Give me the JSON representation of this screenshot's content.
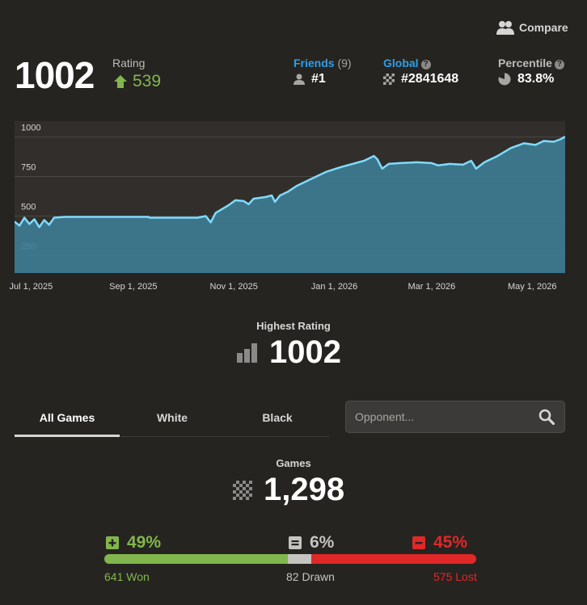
{
  "header": {
    "compare_label": "Compare",
    "rating_value": "1002",
    "rating_label": "Rating",
    "rating_change": "539",
    "friends": {
      "label": "Friends",
      "count": "(9)",
      "value": "#1"
    },
    "global": {
      "label": "Global",
      "value": "#2841648"
    },
    "percentile": {
      "label": "Percentile",
      "value": "83.8%"
    }
  },
  "chart_data": {
    "type": "area",
    "x_tick_labels": [
      "Jul 1, 2025",
      "Sep 1, 2025",
      "Nov 1, 2025",
      "Jan 1, 2026",
      "Mar 1, 2026",
      "May 1, 2026"
    ],
    "y_tick_labels": [
      "1000",
      "750",
      "500",
      "250"
    ],
    "y_ticks": [
      1000,
      750,
      500,
      250
    ],
    "ylim": [
      140,
      1100
    ],
    "x_range": [
      "2025-06-21",
      "2026-05-21"
    ],
    "grid": true,
    "series": [
      {
        "color": "#7fdbff",
        "points": [
          [
            "2025-06-21",
            465
          ],
          [
            "2025-06-24",
            440
          ],
          [
            "2025-06-27",
            490
          ],
          [
            "2025-06-30",
            450
          ],
          [
            "2025-07-03",
            480
          ],
          [
            "2025-07-06",
            430
          ],
          [
            "2025-07-09",
            475
          ],
          [
            "2025-07-12",
            445
          ],
          [
            "2025-07-15",
            490
          ],
          [
            "2025-07-22",
            495
          ],
          [
            "2025-08-15",
            495
          ],
          [
            "2025-09-10",
            495
          ],
          [
            "2025-09-11",
            490
          ],
          [
            "2025-10-10",
            490
          ],
          [
            "2025-10-15",
            500
          ],
          [
            "2025-10-18",
            460
          ],
          [
            "2025-10-21",
            520
          ],
          [
            "2025-10-25",
            545
          ],
          [
            "2025-10-29",
            570
          ],
          [
            "2025-11-02",
            600
          ],
          [
            "2025-11-07",
            595
          ],
          [
            "2025-11-10",
            575
          ],
          [
            "2025-11-13",
            610
          ],
          [
            "2025-11-20",
            620
          ],
          [
            "2025-11-24",
            630
          ],
          [
            "2025-11-26",
            590
          ],
          [
            "2025-11-29",
            630
          ],
          [
            "2025-12-04",
            655
          ],
          [
            "2025-12-09",
            690
          ],
          [
            "2025-12-14",
            715
          ],
          [
            "2025-12-20",
            745
          ],
          [
            "2025-12-27",
            780
          ],
          [
            "2026-01-05",
            810
          ],
          [
            "2026-01-12",
            830
          ],
          [
            "2026-01-19",
            850
          ],
          [
            "2026-01-25",
            880
          ],
          [
            "2026-01-27",
            860
          ],
          [
            "2026-01-30",
            800
          ],
          [
            "2026-02-03",
            830
          ],
          [
            "2026-02-10",
            835
          ],
          [
            "2026-02-20",
            840
          ],
          [
            "2026-03-01",
            835
          ],
          [
            "2026-03-05",
            820
          ],
          [
            "2026-03-12",
            830
          ],
          [
            "2026-03-20",
            825
          ],
          [
            "2026-03-25",
            850
          ],
          [
            "2026-03-28",
            800
          ],
          [
            "2026-04-02",
            840
          ],
          [
            "2026-04-10",
            880
          ],
          [
            "2026-04-18",
            930
          ],
          [
            "2026-04-26",
            960
          ],
          [
            "2026-05-03",
            950
          ],
          [
            "2026-05-08",
            975
          ],
          [
            "2026-05-14",
            970
          ],
          [
            "2026-05-18",
            985
          ],
          [
            "2026-05-21",
            1002
          ]
        ]
      }
    ]
  },
  "highest": {
    "label": "Highest Rating",
    "value": "1002"
  },
  "tabs": [
    {
      "label": "All Games",
      "active": true
    },
    {
      "label": "White",
      "active": false
    },
    {
      "label": "Black",
      "active": false
    }
  ],
  "search": {
    "placeholder": "Opponent..."
  },
  "games": {
    "label": "Games",
    "value": "1,298"
  },
  "results": {
    "won_pct": "49%",
    "drawn_pct": "6%",
    "lost_pct": "45%",
    "won": 641,
    "drawn": 82,
    "lost": 575,
    "won_text": "641 Won",
    "drawn_text": "82 Drawn",
    "lost_text": "575 Lost",
    "colors": {
      "won": "#81b64c",
      "drawn": "#c5c4c1",
      "lost": "#e02828"
    }
  }
}
